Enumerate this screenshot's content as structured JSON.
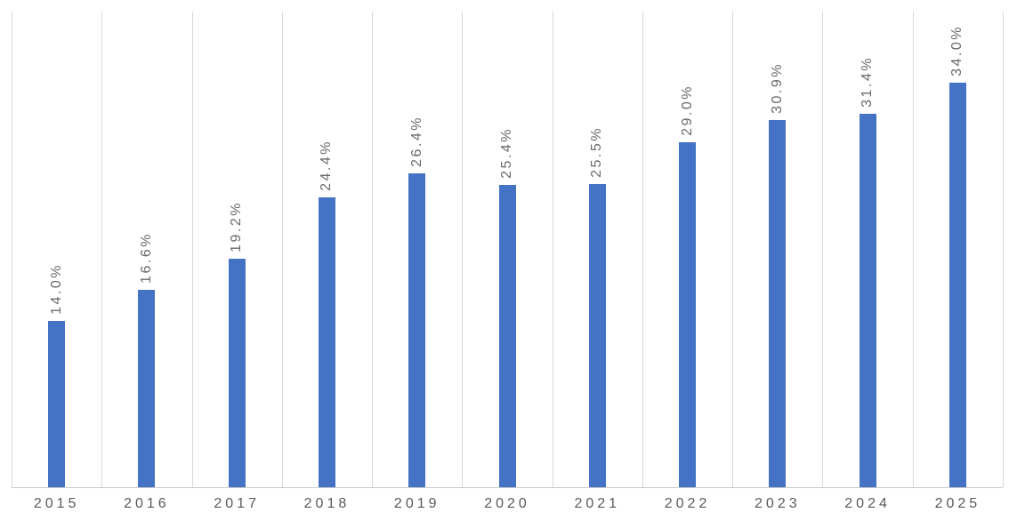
{
  "chart_data": {
    "type": "bar",
    "title": "",
    "xlabel": "",
    "ylabel": "",
    "categories": [
      "2015",
      "2016",
      "2017",
      "2018",
      "2019",
      "2020",
      "2021",
      "2022",
      "2023",
      "2024",
      "2025"
    ],
    "values": [
      14.0,
      16.6,
      19.2,
      24.4,
      26.4,
      25.4,
      25.5,
      29.0,
      30.9,
      31.4,
      34.0
    ],
    "value_labels": [
      "14.0%",
      "16.6%",
      "19.2%",
      "24.4%",
      "26.4%",
      "25.4%",
      "25.5%",
      "29.0%",
      "30.9%",
      "31.4%",
      "34.0%"
    ],
    "ylim": [
      0,
      40
    ],
    "grid": "vertical-only",
    "legend": "none",
    "data_label_rotation": 270,
    "colors": {
      "bar": "#4472C4",
      "gridline": "#D9D9D9",
      "axis_line": "#C9C9C9",
      "axis_label": "#595959",
      "data_label": "#6b6b6b",
      "background": "#ffffff"
    }
  }
}
